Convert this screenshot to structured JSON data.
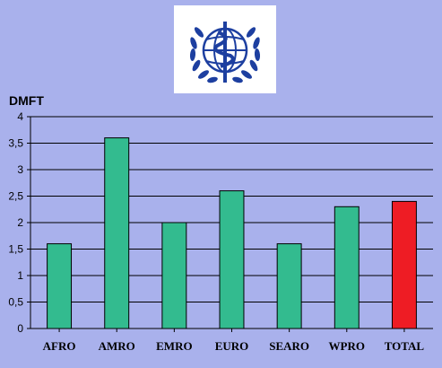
{
  "chart_data": {
    "type": "bar",
    "ylabel": "DMFT",
    "xlabel": "",
    "ylim": [
      0,
      4
    ],
    "yticks": [
      0,
      0.5,
      1,
      1.5,
      2,
      2.5,
      3,
      3.5,
      4
    ],
    "ytick_labels": [
      "0",
      "0,5",
      "1",
      "1,5",
      "2",
      "2,5",
      "3",
      "3,5",
      "4"
    ],
    "categories": [
      "AFRO",
      "AMRO",
      "EMRO",
      "EURO",
      "SEARO",
      "WPRO",
      "TOTAL"
    ],
    "values": [
      1.6,
      3.6,
      2.0,
      2.6,
      1.6,
      2.3,
      2.4
    ],
    "bar_colors": [
      "#33bb8f",
      "#33bb8f",
      "#33bb8f",
      "#33bb8f",
      "#33bb8f",
      "#33bb8f",
      "#ee1c24"
    ],
    "grid": true,
    "legend": "none",
    "background": "#a9b1ec"
  },
  "logo": {
    "icon": "who-emblem-icon",
    "color": "#1d3fa0"
  }
}
